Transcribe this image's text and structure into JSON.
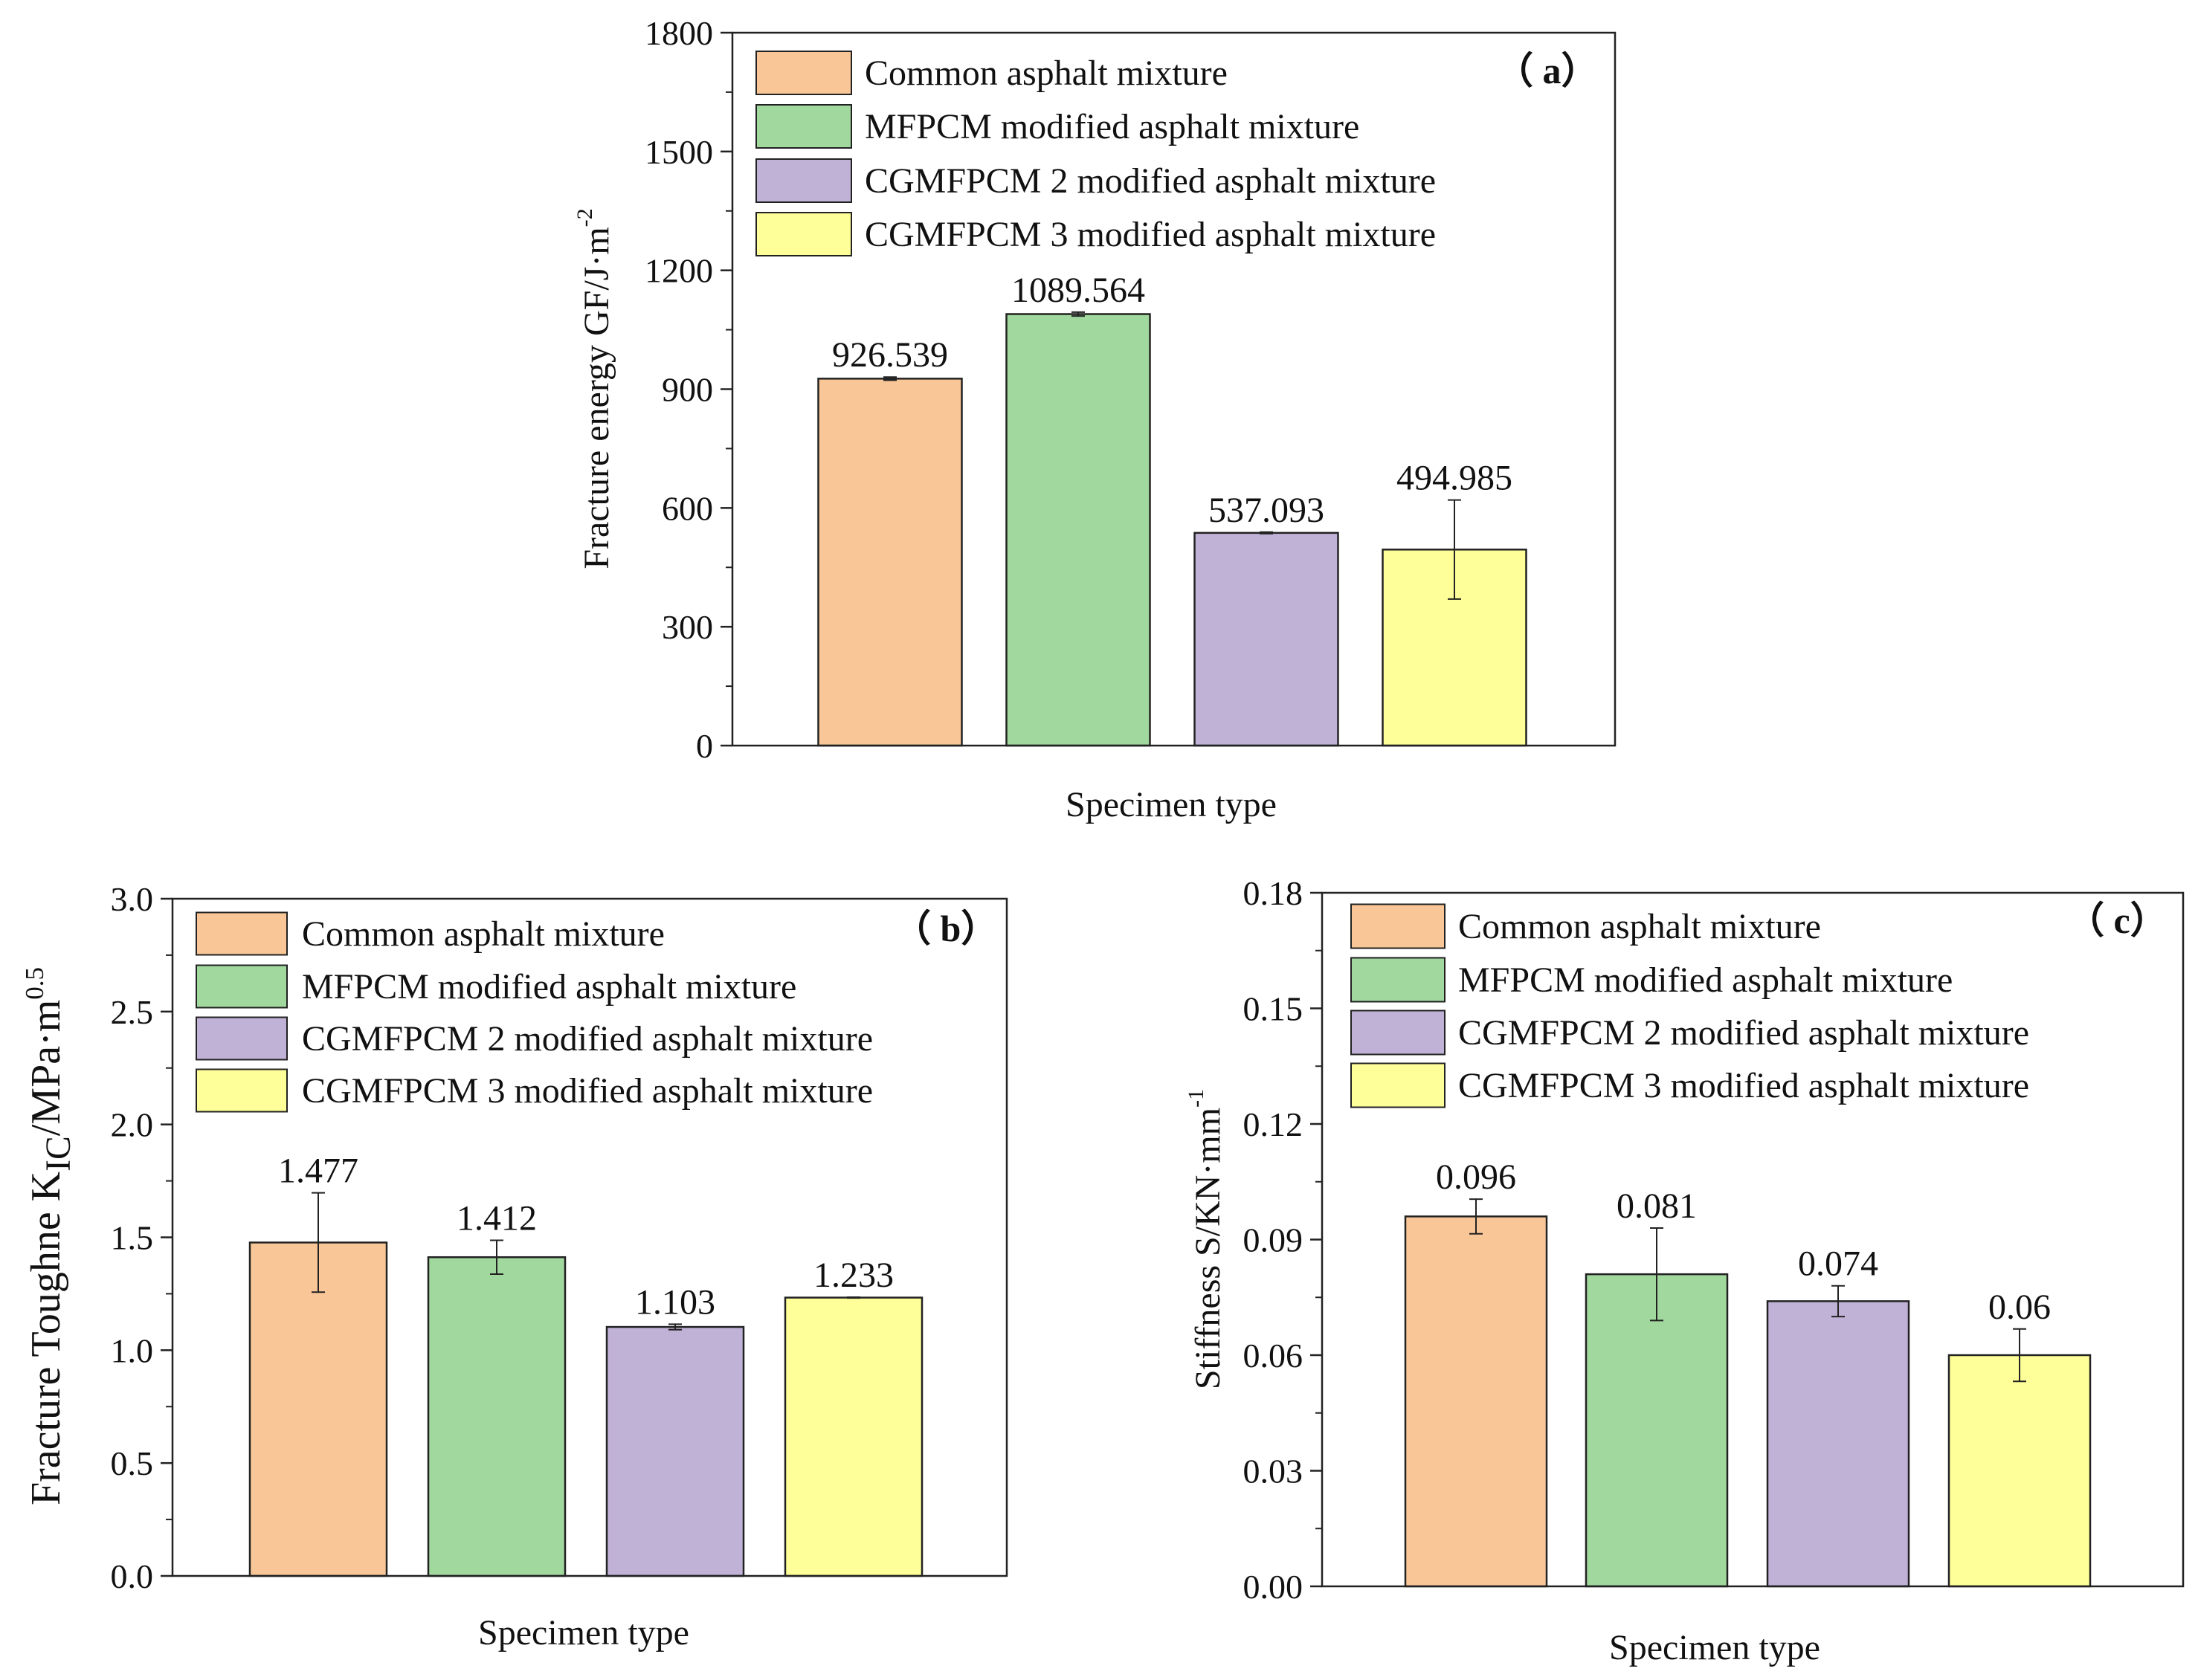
{
  "chart_data": [
    {
      "type": "bar",
      "panel_label": "（ a）",
      "xlabel": "Specimen type",
      "ylabel": "Fracture energy GF/J·m",
      "ylabel_sup": "-2",
      "ylim": [
        0,
        1800
      ],
      "yticks": [
        0,
        300,
        600,
        900,
        1200,
        1500,
        1800
      ],
      "ytick_labels": [
        "0",
        "300",
        "600",
        "900",
        "1200",
        "1500",
        "1800"
      ],
      "categories": [
        "Common asphalt mixture",
        "MFPCM modified asphalt mixture",
        "CGMFPCM 2 modified asphalt mixture",
        "CGMFPCM 3 modified asphalt mixture"
      ],
      "values": [
        926.539,
        1089.564,
        537.093,
        494.985
      ],
      "errors": [
        4,
        5,
        2,
        125
      ],
      "value_labels": [
        "926.539",
        "1089.564",
        "537.093",
        "494.985"
      ],
      "legend_position": "top-left"
    },
    {
      "type": "bar",
      "panel_label": "（ b）",
      "xlabel": "Specimen type",
      "ylabel": "Fracture Toughne K",
      "ylabel_sub": "IC",
      "ylabel_rest": "/MPa·m",
      "ylabel_sup": "0.5",
      "ylim": [
        0,
        3.0
      ],
      "yticks": [
        0,
        0.5,
        1.0,
        1.5,
        2.0,
        2.5,
        3.0
      ],
      "ytick_labels": [
        "0.0",
        "0.5",
        "1.0",
        "1.5",
        "2.0",
        "2.5",
        "3.0"
      ],
      "categories": [
        "Common asphalt mixture",
        "MFPCM modified asphalt mixture",
        "CGMFPCM 2 modified asphalt mixture",
        "CGMFPCM 3 modified asphalt mixture"
      ],
      "values": [
        1.477,
        1.412,
        1.103,
        1.233
      ],
      "errors": [
        0.22,
        0.075,
        0.012,
        0.002
      ],
      "value_labels": [
        "1.477",
        "1.412",
        "1.103",
        "1.233"
      ],
      "legend_position": "top-left"
    },
    {
      "type": "bar",
      "panel_label": "（ c）",
      "xlabel": "Specimen type",
      "ylabel": "Stiffness S/KN·mm",
      "ylabel_sup": "-1",
      "ylim": [
        0,
        0.18
      ],
      "yticks": [
        0,
        0.03,
        0.06,
        0.09,
        0.12,
        0.15,
        0.18
      ],
      "ytick_labels": [
        "0.00",
        "0.03",
        "0.06",
        "0.09",
        "0.12",
        "0.15",
        "0.18"
      ],
      "categories": [
        "Common asphalt mixture",
        "MFPCM modified asphalt mixture",
        "CGMFPCM 2 modified asphalt mixture",
        "CGMFPCM 3 modified asphalt mixture"
      ],
      "values": [
        0.096,
        0.081,
        0.074,
        0.06
      ],
      "errors": [
        0.0045,
        0.012,
        0.004,
        0.0068
      ],
      "value_labels": [
        "0.096",
        "0.081",
        "0.074",
        "0.06"
      ],
      "legend_position": "top-left"
    }
  ],
  "colors": {
    "series": [
      "#F9C797",
      "#A0D89E",
      "#C0B1D6",
      "#FFFF99"
    ],
    "edge": "#222222",
    "text": "#111111"
  }
}
